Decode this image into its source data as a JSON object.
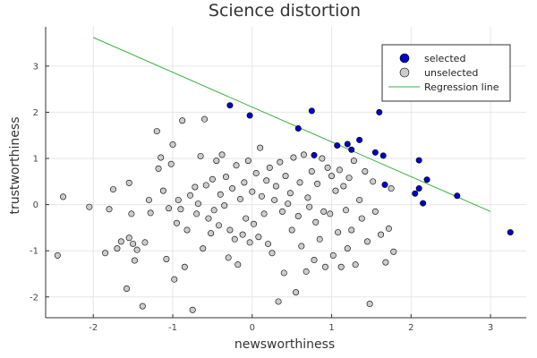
{
  "chart_data": {
    "type": "scatter",
    "title": "Science distortion",
    "xlabel": "newsworthiness",
    "ylabel": "trustworthiness",
    "xlim": [
      -2.6,
      3.45
    ],
    "ylim": [
      -2.45,
      3.85
    ],
    "xticks": [
      -2,
      -1,
      0,
      1,
      2,
      3
    ],
    "yticks": [
      -2,
      -1,
      0,
      1,
      2,
      3
    ],
    "grid": true,
    "legend_position": "top-right",
    "series": [
      {
        "name": "selected",
        "color": "#0000cc",
        "points": [
          [
            -0.28,
            2.15
          ],
          [
            -0.03,
            1.93
          ],
          [
            0.75,
            2.03
          ],
          [
            0.58,
            1.65
          ],
          [
            0.78,
            1.07
          ],
          [
            1.07,
            1.28
          ],
          [
            1.2,
            1.31
          ],
          [
            1.25,
            1.19
          ],
          [
            1.35,
            1.4
          ],
          [
            1.55,
            1.13
          ],
          [
            1.6,
            2.0
          ],
          [
            1.65,
            1.06
          ],
          [
            1.67,
            0.43
          ],
          [
            2.05,
            0.24
          ],
          [
            2.1,
            0.96
          ],
          [
            2.1,
            0.35
          ],
          [
            2.15,
            0.03
          ],
          [
            2.2,
            0.54
          ],
          [
            2.58,
            0.19
          ],
          [
            3.25,
            -0.6
          ]
        ]
      },
      {
        "name": "unselected",
        "color": "#cccccc",
        "points": [
          [
            -2.45,
            -1.1
          ],
          [
            -2.38,
            0.17
          ],
          [
            -2.05,
            -0.05
          ],
          [
            -1.85,
            -1.05
          ],
          [
            -1.8,
            -0.1
          ],
          [
            -1.75,
            0.33
          ],
          [
            -1.7,
            -0.95
          ],
          [
            -1.65,
            -0.8
          ],
          [
            -1.58,
            -1.82
          ],
          [
            -1.55,
            0.47
          ],
          [
            -1.55,
            -0.72
          ],
          [
            -1.52,
            -0.2
          ],
          [
            -1.5,
            -0.85
          ],
          [
            -1.48,
            -1.21
          ],
          [
            -1.45,
            -0.98
          ],
          [
            -1.38,
            -2.2
          ],
          [
            -1.35,
            -0.82
          ],
          [
            -1.3,
            0.1
          ],
          [
            -1.28,
            -0.18
          ],
          [
            -1.2,
            1.59
          ],
          [
            -1.18,
            0.78
          ],
          [
            -1.15,
            1.02
          ],
          [
            -1.12,
            0.3
          ],
          [
            -1.08,
            -1.18
          ],
          [
            -1.05,
            -0.08
          ],
          [
            -1.02,
            0.88
          ],
          [
            -1.0,
            1.3
          ],
          [
            -0.98,
            -1.62
          ],
          [
            -0.95,
            -0.4
          ],
          [
            -0.93,
            0.1
          ],
          [
            -0.9,
            -0.1
          ],
          [
            -0.88,
            1.82
          ],
          [
            -0.85,
            -1.35
          ],
          [
            -0.82,
            -0.55
          ],
          [
            -0.78,
            0.2
          ],
          [
            -0.75,
            -2.28
          ],
          [
            -0.72,
            0.38
          ],
          [
            -0.7,
            -0.2
          ],
          [
            -0.68,
            0.02
          ],
          [
            -0.65,
            1.05
          ],
          [
            -0.62,
            -0.95
          ],
          [
            -0.6,
            1.85
          ],
          [
            -0.58,
            0.42
          ],
          [
            -0.55,
            -0.3
          ],
          [
            -0.52,
            -0.62
          ],
          [
            -0.5,
            0.55
          ],
          [
            -0.48,
            -0.12
          ],
          [
            -0.45,
            0.95
          ],
          [
            -0.42,
            -0.45
          ],
          [
            -0.4,
            0.22
          ],
          [
            -0.38,
            1.08
          ],
          [
            -0.35,
            -0.02
          ],
          [
            -0.33,
            0.6
          ],
          [
            -0.3,
            -1.15
          ],
          [
            -0.28,
            -0.55
          ],
          [
            -0.25,
            0.35
          ],
          [
            -0.22,
            -0.75
          ],
          [
            -0.2,
            0.85
          ],
          [
            -0.18,
            -1.3
          ],
          [
            -0.15,
            0.12
          ],
          [
            -0.12,
            -0.65
          ],
          [
            -0.1,
            0.48
          ],
          [
            -0.08,
            -0.3
          ],
          [
            -0.05,
            0.95
          ],
          [
            -0.03,
            -0.82
          ],
          [
            0.0,
            0.28
          ],
          [
            0.02,
            -0.42
          ],
          [
            0.05,
            0.68
          ],
          [
            0.08,
            -0.7
          ],
          [
            0.1,
            1.23
          ],
          [
            0.12,
            0.18
          ],
          [
            0.15,
            -0.2
          ],
          [
            0.18,
            0.52
          ],
          [
            0.2,
            -0.85
          ],
          [
            0.22,
            0.8
          ],
          [
            0.25,
            -1.05
          ],
          [
            0.28,
            0.1
          ],
          [
            0.3,
            0.4
          ],
          [
            0.33,
            -2.1
          ],
          [
            0.35,
            0.92
          ],
          [
            0.38,
            -0.15
          ],
          [
            0.4,
            -1.48
          ],
          [
            0.42,
            0.62
          ],
          [
            0.45,
            0.02
          ],
          [
            0.48,
            0.25
          ],
          [
            0.5,
            -0.55
          ],
          [
            0.52,
            1.02
          ],
          [
            0.55,
            -1.9
          ],
          [
            0.58,
            -0.25
          ],
          [
            0.6,
            0.48
          ],
          [
            0.62,
            -0.9
          ],
          [
            0.65,
            1.08
          ],
          [
            0.68,
            -1.45
          ],
          [
            0.7,
            0.15
          ],
          [
            0.72,
            -0.05
          ],
          [
            0.75,
            0.72
          ],
          [
            0.78,
            -1.2
          ],
          [
            0.8,
            -0.38
          ],
          [
            0.82,
            0.45
          ],
          [
            0.85,
            -0.75
          ],
          [
            0.88,
            1.0
          ],
          [
            0.9,
            -0.15
          ],
          [
            0.92,
            -1.35
          ],
          [
            0.95,
            0.8
          ],
          [
            0.98,
            -0.2
          ],
          [
            1.0,
            0.62
          ],
          [
            1.02,
            -1.1
          ],
          [
            1.05,
            0.3
          ],
          [
            1.08,
            -0.6
          ],
          [
            1.1,
            0.75
          ],
          [
            1.12,
            -1.35
          ],
          [
            1.15,
            0.4
          ],
          [
            1.18,
            -0.12
          ],
          [
            1.2,
            -0.95
          ],
          [
            1.22,
            0.58
          ],
          [
            1.25,
            -0.55
          ],
          [
            1.28,
            0.95
          ],
          [
            1.3,
            -1.3
          ],
          [
            1.35,
            0.1
          ],
          [
            1.38,
            -0.3
          ],
          [
            1.42,
            0.72
          ],
          [
            1.45,
            -0.8
          ],
          [
            1.48,
            -2.15
          ],
          [
            1.52,
            0.5
          ],
          [
            1.55,
            -0.15
          ],
          [
            1.62,
            -0.65
          ],
          [
            1.68,
            -1.25
          ],
          [
            1.72,
            -0.52
          ],
          [
            1.75,
            0.35
          ],
          [
            1.78,
            -1.02
          ]
        ]
      }
    ],
    "regression_line": {
      "name": "Regression line",
      "color": "#3cb040",
      "from": [
        -2.0,
        3.62
      ],
      "to": [
        3.0,
        -0.15
      ]
    }
  }
}
